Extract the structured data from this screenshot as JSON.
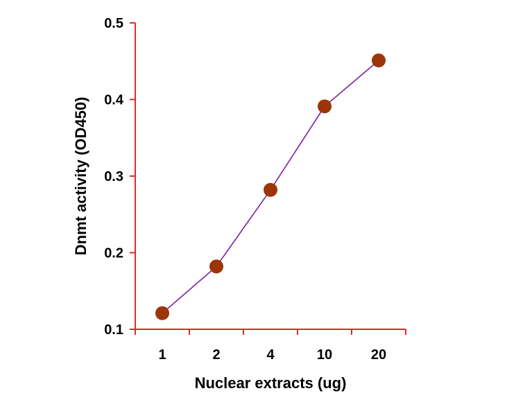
{
  "chart_data": {
    "type": "line",
    "title": "",
    "xlabel": "Nuclear extracts (ug)",
    "ylabel": "Dnmt activity (OD450)",
    "categories": [
      "1",
      "2",
      "4",
      "10",
      "20"
    ],
    "series": [
      {
        "values": [
          0.121,
          0.182,
          0.282,
          0.391,
          0.451
        ]
      }
    ],
    "ylim": [
      0.1,
      0.5
    ],
    "yticks": [
      "0.1",
      "0.2",
      "0.3",
      "0.4",
      "0.5"
    ],
    "grid": false,
    "legend": "none"
  },
  "colors": {
    "axis": "#e32626",
    "line": "#7b1fa2",
    "marker": "#9c3508",
    "text": "#000000"
  }
}
